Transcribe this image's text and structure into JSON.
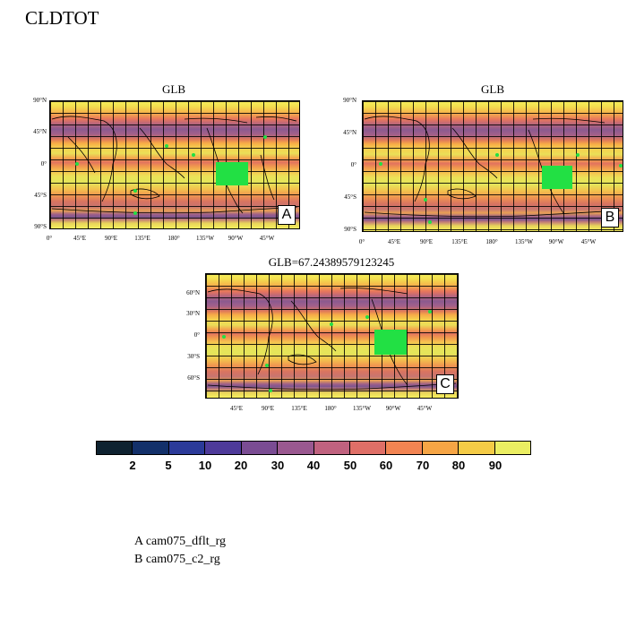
{
  "main_title": "CLDTOT",
  "panels": [
    {
      "title": "GLB",
      "letter": "A"
    },
    {
      "title": "GLB",
      "letter": "B"
    },
    {
      "title": "GLB=67.24389579123245",
      "letter": "C"
    }
  ],
  "lat_labels_ab": [
    "90°N",
    "45°N",
    "0°",
    "45°S",
    "90°S"
  ],
  "lat_labels_c": [
    "60°N",
    "30°N",
    "0°",
    "30°S",
    "60°S"
  ],
  "lon_labels_ab": [
    "0°",
    "45°E",
    "90°E",
    "135°E",
    "180°",
    "135°W",
    "90°W",
    "45°W"
  ],
  "lon_labels_c": [
    "45°E",
    "90°E",
    "135°E",
    "180°",
    "135°W",
    "90°W",
    "45°W"
  ],
  "colorbar": {
    "colors": [
      "#0e2230",
      "#13306a",
      "#2b3a99",
      "#4e3a9a",
      "#7a4c93",
      "#9a5890",
      "#c0627f",
      "#df6f67",
      "#f28452",
      "#f6a545",
      "#f4cb46",
      "#ebee62"
    ],
    "labels": [
      "2",
      "5",
      "10",
      "20",
      "30",
      "40",
      "50",
      "60",
      "70",
      "80",
      "90"
    ]
  },
  "legend": [
    "A  cam075_dflt_rg",
    "B  cam075_c2_rg"
  ]
}
